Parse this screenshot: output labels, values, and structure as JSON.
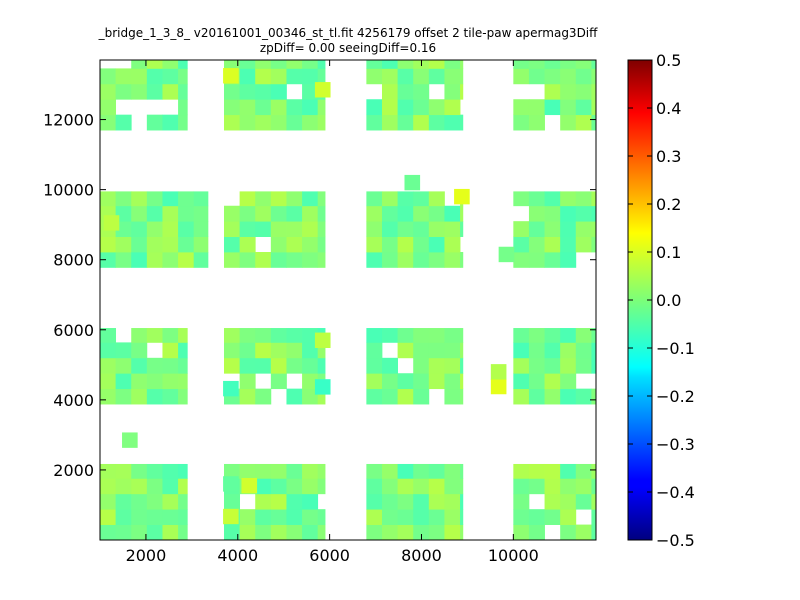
{
  "chart_data": {
    "type": "heatmap",
    "title": "_bridge_1_3_8_ v20161001_00346_st_tl.fit 4256179 offset 2 tile-paw apermag3Diff",
    "subtitle": "zpDiff= 0.00 seeingDiff=0.16",
    "xlabel": "",
    "ylabel": "",
    "xlim": [
      1000,
      11800
    ],
    "ylim": [
      0,
      13700
    ],
    "x_ticks": [
      2000,
      4000,
      6000,
      8000,
      10000
    ],
    "y_ticks": [
      2000,
      4000,
      6000,
      8000,
      10000,
      12000
    ],
    "x_tick_labels": [
      "2000",
      "4000",
      "6000",
      "8000",
      "10000"
    ],
    "y_tick_labels": [
      "2000",
      "4000",
      "6000",
      "8000",
      "10000",
      "12000"
    ],
    "colorbar": {
      "colormap": "jet",
      "range": [
        -0.5,
        0.5
      ],
      "ticks": [
        -0.5,
        -0.4,
        -0.3,
        -0.2,
        -0.1,
        0.0,
        0.1,
        0.2,
        0.3,
        0.4,
        0.5
      ],
      "tick_labels": [
        "−0.5",
        "−0.4",
        "−0.3",
        "−0.2",
        "−0.1",
        "0.0",
        "0.1",
        "0.2",
        "0.3",
        "0.4",
        "0.5"
      ]
    },
    "grid": false,
    "cell_size": [
      340,
      440
    ],
    "bands": [
      {
        "y_range": [
          0,
          2170
        ],
        "x_ranges": [
          [
            1000,
            2900
          ],
          [
            3700,
            5900
          ],
          [
            6800,
            8900
          ],
          [
            10000,
            11800
          ]
        ]
      },
      {
        "y_range": [
          3880,
          6050
        ],
        "x_ranges": [
          [
            1000,
            2900
          ],
          [
            3700,
            5900
          ],
          [
            6800,
            8900
          ],
          [
            10000,
            11800
          ]
        ]
      },
      {
        "y_range": [
          7780,
          9950
        ],
        "x_ranges": [
          [
            1000,
            3350
          ],
          [
            3700,
            5900
          ],
          [
            6800,
            8900
          ],
          [
            10000,
            11800
          ]
        ]
      },
      {
        "y_range": [
          11700,
          13700
        ],
        "x_ranges": [
          [
            1000,
            2900
          ],
          [
            3700,
            5900
          ],
          [
            6800,
            8900
          ],
          [
            10000,
            11800
          ]
        ]
      }
    ],
    "notable_cells": [
      {
        "x": 3850,
        "y": 13250,
        "value": 0.09
      },
      {
        "x": 5850,
        "y": 12850,
        "value": 0.08
      },
      {
        "x": 8880,
        "y": 9800,
        "value": 0.1
      },
      {
        "x": 7800,
        "y": 10200,
        "value": -0.02
      },
      {
        "x": 9680,
        "y": 4380,
        "value": 0.1
      },
      {
        "x": 9680,
        "y": 4800,
        "value": 0.05
      },
      {
        "x": 3850,
        "y": 4320,
        "value": -0.06
      },
      {
        "x": 5850,
        "y": 4370,
        "value": -0.07
      },
      {
        "x": 5850,
        "y": 5700,
        "value": 0.06
      },
      {
        "x": 1650,
        "y": 2850,
        "value": 0.0
      },
      {
        "x": 4250,
        "y": 1550,
        "value": 0.08
      },
      {
        "x": 3850,
        "y": 1600,
        "value": -0.03
      },
      {
        "x": 1250,
        "y": 9050,
        "value": 0.06
      },
      {
        "x": 3850,
        "y": 670,
        "value": 0.07
      },
      {
        "x": 9850,
        "y": 8150,
        "value": -0.01
      }
    ]
  }
}
